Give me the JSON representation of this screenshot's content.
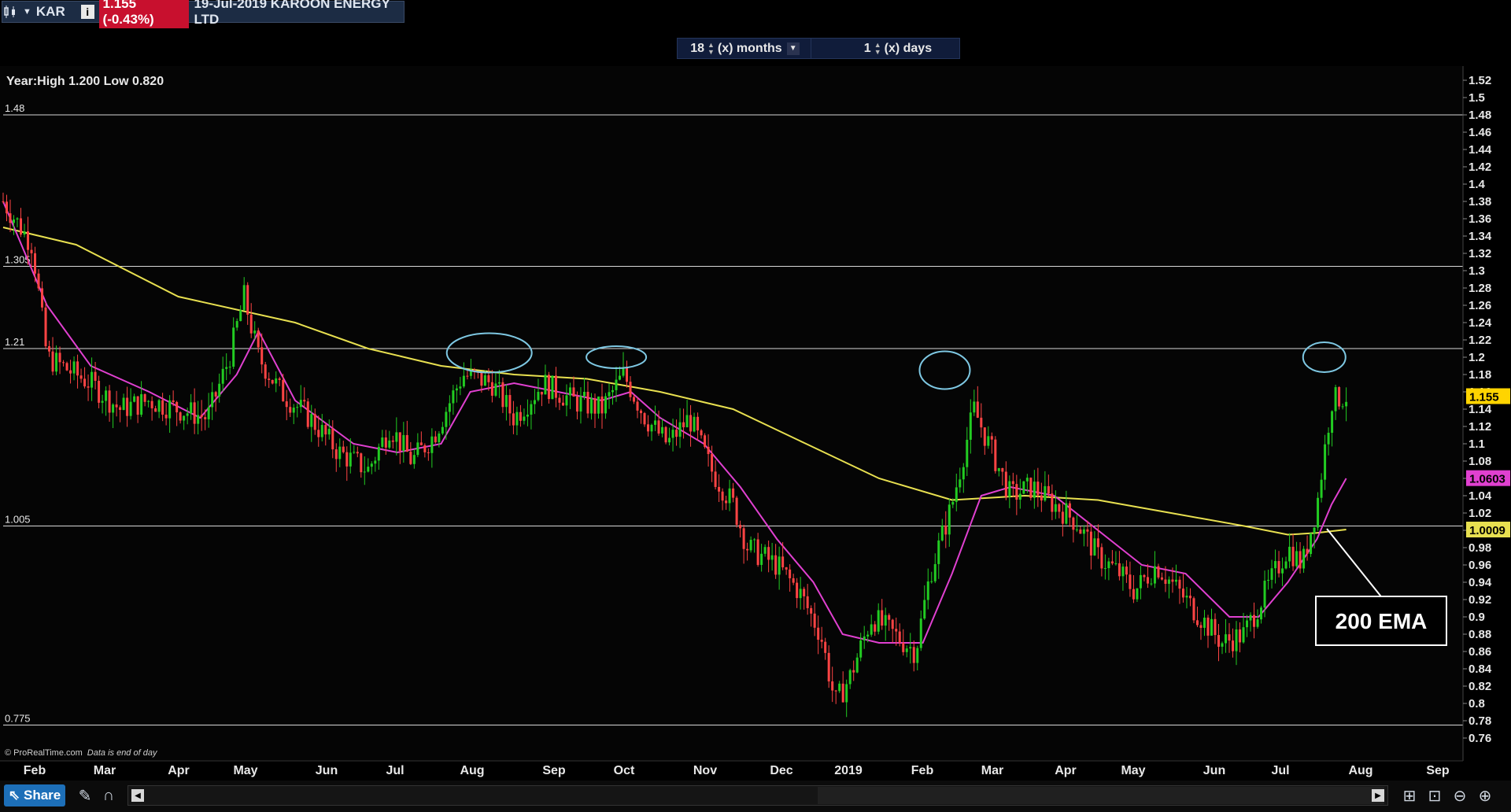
{
  "header": {
    "symbol": "KAR",
    "price_change": "1.155 (-0.43%)",
    "date_name": "19-Jul-2019 KAROON ENERGY LTD",
    "info_label": "i"
  },
  "period": {
    "months_value": "18",
    "months_label": "(x) months",
    "days_value": "1",
    "days_label": "(x) days"
  },
  "colors": {
    "up": "#22cc22",
    "down": "#ff4444",
    "ema_fast": "#e040d0",
    "ema_slow": "#e8e050",
    "circle": "#7ec8e3",
    "annotation": "#ffffff"
  },
  "chart_data": {
    "type": "candlestick",
    "title": "Year:High 1.200 Low 0.820",
    "ylim": [
      0.76,
      1.52
    ],
    "y_ticks": [
      "1.52",
      "1.5",
      "1.48",
      "1.46",
      "1.44",
      "1.42",
      "1.4",
      "1.38",
      "1.36",
      "1.34",
      "1.32",
      "1.3",
      "1.28",
      "1.26",
      "1.24",
      "1.22",
      "1.2",
      "1.18",
      "1.16",
      "1.14",
      "1.12",
      "1.1",
      "1.08",
      "1.06",
      "1.04",
      "1.02",
      "1",
      "0.98",
      "0.96",
      "0.94",
      "0.92",
      "0.9",
      "0.88",
      "0.86",
      "0.84",
      "0.82",
      "0.8",
      "0.78",
      "0.76"
    ],
    "x_labels": [
      "Feb",
      "Mar",
      "Apr",
      "May",
      "Jun",
      "Jul",
      "Aug",
      "Sep",
      "Oct",
      "Nov",
      "Dec",
      "2019",
      "Feb",
      "Mar",
      "Apr",
      "May",
      "Jun",
      "Jul",
      "Aug",
      "Sep"
    ],
    "horizontal_levels": [
      {
        "label": "1.48",
        "value": 1.48
      },
      {
        "label": "1.305",
        "value": 1.305
      },
      {
        "label": "1.21",
        "value": 1.21
      },
      {
        "label": "1.005",
        "value": 1.005
      },
      {
        "label": "0.775",
        "value": 0.775
      }
    ],
    "price_markers": [
      {
        "label": "1.155",
        "value": 1.155,
        "color": "#ffd400"
      },
      {
        "label": "1.0603",
        "value": 1.0603,
        "color": "#e040d0"
      },
      {
        "label": "1.0009",
        "value": 1.0009,
        "color": "#e8e050"
      }
    ],
    "circled_highs": [
      {
        "month": "Aug",
        "value": 1.205
      },
      {
        "month": "Oct",
        "value": 1.2
      },
      {
        "month": "Feb/Mar 2019",
        "value": 1.185
      },
      {
        "month": "Jul 2019",
        "value": 1.2
      }
    ],
    "annotation": "200 EMA",
    "source_note": "© ProRealTime.com",
    "source_note_suffix": "Data is end of day",
    "close_path": [
      [
        0,
        1.38
      ],
      [
        0.02,
        1.33
      ],
      [
        0.03,
        1.2
      ],
      [
        0.06,
        1.17
      ],
      [
        0.08,
        1.14
      ],
      [
        0.1,
        1.15
      ],
      [
        0.12,
        1.14
      ],
      [
        0.14,
        1.13
      ],
      [
        0.155,
        1.2
      ],
      [
        0.165,
        1.27
      ],
      [
        0.175,
        1.2
      ],
      [
        0.19,
        1.16
      ],
      [
        0.21,
        1.13
      ],
      [
        0.23,
        1.09
      ],
      [
        0.25,
        1.07
      ],
      [
        0.265,
        1.12
      ],
      [
        0.28,
        1.08
      ],
      [
        0.295,
        1.11
      ],
      [
        0.315,
        1.18
      ],
      [
        0.335,
        1.17
      ],
      [
        0.35,
        1.13
      ],
      [
        0.37,
        1.17
      ],
      [
        0.39,
        1.15
      ],
      [
        0.41,
        1.14
      ],
      [
        0.425,
        1.18
      ],
      [
        0.44,
        1.13
      ],
      [
        0.455,
        1.1
      ],
      [
        0.47,
        1.13
      ],
      [
        0.485,
        1.07
      ],
      [
        0.5,
        1.03
      ],
      [
        0.51,
        0.98
      ],
      [
        0.53,
        0.96
      ],
      [
        0.545,
        0.93
      ],
      [
        0.56,
        0.88
      ],
      [
        0.57,
        0.8
      ],
      [
        0.58,
        0.83
      ],
      [
        0.595,
        0.9
      ],
      [
        0.61,
        0.88
      ],
      [
        0.625,
        0.86
      ],
      [
        0.635,
        0.95
      ],
      [
        0.65,
        1.03
      ],
      [
        0.665,
        1.14
      ],
      [
        0.675,
        1.1
      ],
      [
        0.69,
        1.04
      ],
      [
        0.705,
        1.05
      ],
      [
        0.72,
        1.03
      ],
      [
        0.735,
        1.01
      ],
      [
        0.75,
        0.97
      ],
      [
        0.765,
        0.95
      ],
      [
        0.775,
        0.93
      ],
      [
        0.79,
        0.96
      ],
      [
        0.805,
        0.93
      ],
      [
        0.82,
        0.9
      ],
      [
        0.835,
        0.87
      ],
      [
        0.85,
        0.88
      ],
      [
        0.865,
        0.93
      ],
      [
        0.88,
        0.98
      ],
      [
        0.89,
        0.96
      ],
      [
        0.9,
        1.03
      ],
      [
        0.91,
        1.15
      ],
      [
        0.92,
        1.155
      ]
    ],
    "ema_fast_path": [
      [
        0,
        1.38
      ],
      [
        0.03,
        1.26
      ],
      [
        0.06,
        1.19
      ],
      [
        0.1,
        1.16
      ],
      [
        0.135,
        1.13
      ],
      [
        0.16,
        1.18
      ],
      [
        0.175,
        1.23
      ],
      [
        0.2,
        1.15
      ],
      [
        0.24,
        1.1
      ],
      [
        0.27,
        1.09
      ],
      [
        0.3,
        1.1
      ],
      [
        0.32,
        1.16
      ],
      [
        0.35,
        1.17
      ],
      [
        0.38,
        1.16
      ],
      [
        0.41,
        1.15
      ],
      [
        0.43,
        1.16
      ],
      [
        0.45,
        1.13
      ],
      [
        0.48,
        1.1
      ],
      [
        0.505,
        1.05
      ],
      [
        0.53,
        0.99
      ],
      [
        0.555,
        0.94
      ],
      [
        0.575,
        0.88
      ],
      [
        0.6,
        0.87
      ],
      [
        0.63,
        0.87
      ],
      [
        0.65,
        0.95
      ],
      [
        0.67,
        1.04
      ],
      [
        0.69,
        1.05
      ],
      [
        0.72,
        1.04
      ],
      [
        0.75,
        1.0
      ],
      [
        0.78,
        0.96
      ],
      [
        0.81,
        0.95
      ],
      [
        0.84,
        0.9
      ],
      [
        0.86,
        0.9
      ],
      [
        0.88,
        0.94
      ],
      [
        0.9,
        0.99
      ],
      [
        0.91,
        1.03
      ],
      [
        0.92,
        1.06
      ]
    ],
    "ema_slow_path": [
      [
        0,
        1.35
      ],
      [
        0.05,
        1.33
      ],
      [
        0.12,
        1.27
      ],
      [
        0.2,
        1.24
      ],
      [
        0.25,
        1.21
      ],
      [
        0.3,
        1.19
      ],
      [
        0.35,
        1.18
      ],
      [
        0.4,
        1.175
      ],
      [
        0.45,
        1.16
      ],
      [
        0.5,
        1.14
      ],
      [
        0.55,
        1.1
      ],
      [
        0.6,
        1.06
      ],
      [
        0.65,
        1.035
      ],
      [
        0.7,
        1.04
      ],
      [
        0.75,
        1.035
      ],
      [
        0.8,
        1.02
      ],
      [
        0.85,
        1.005
      ],
      [
        0.88,
        0.995
      ],
      [
        0.9,
        0.997
      ],
      [
        0.92,
        1.0009
      ]
    ]
  },
  "toolbar": {
    "share_label": "Share"
  }
}
